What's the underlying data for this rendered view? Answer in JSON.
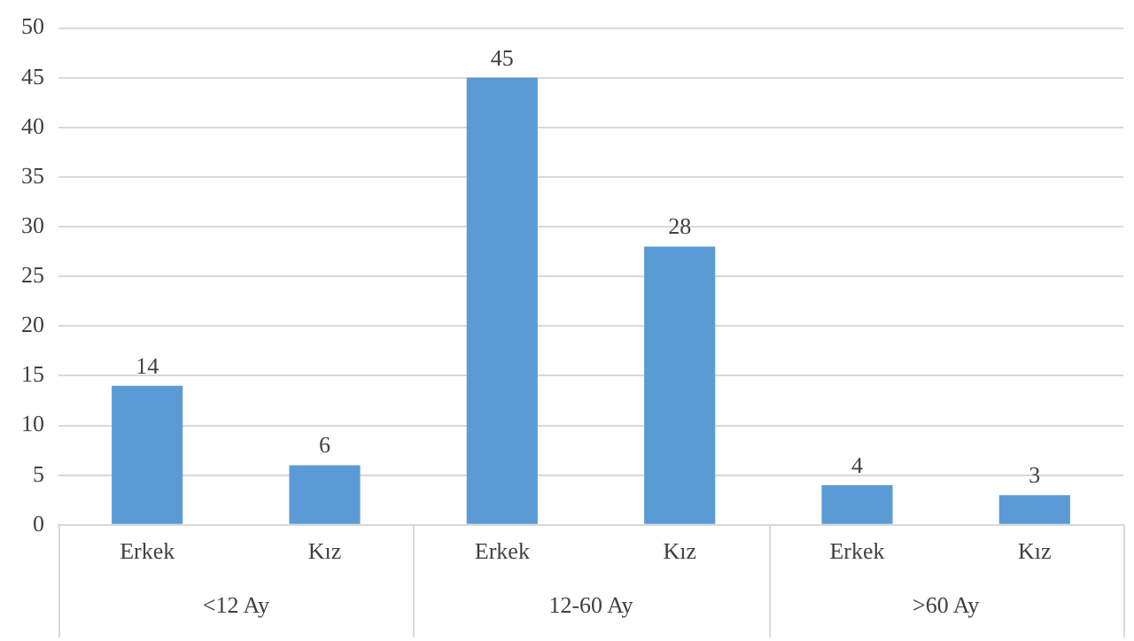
{
  "chart_data": {
    "type": "bar",
    "categories": [
      "Erkek",
      "Kız",
      "Erkek",
      "Kız",
      "Erkek",
      "Kız"
    ],
    "values": [
      14,
      6,
      45,
      28,
      4,
      3
    ],
    "color": "#5b9bd5",
    "ylim": [
      0,
      50
    ],
    "yticks": [
      0,
      5,
      10,
      15,
      20,
      25,
      30,
      35,
      40,
      45,
      50
    ],
    "grid": "y",
    "data_labels": true,
    "legend": false,
    "annotations": [
      "<12 Ay",
      "12-60 Ay",
      ">60 Ay"
    ]
  }
}
